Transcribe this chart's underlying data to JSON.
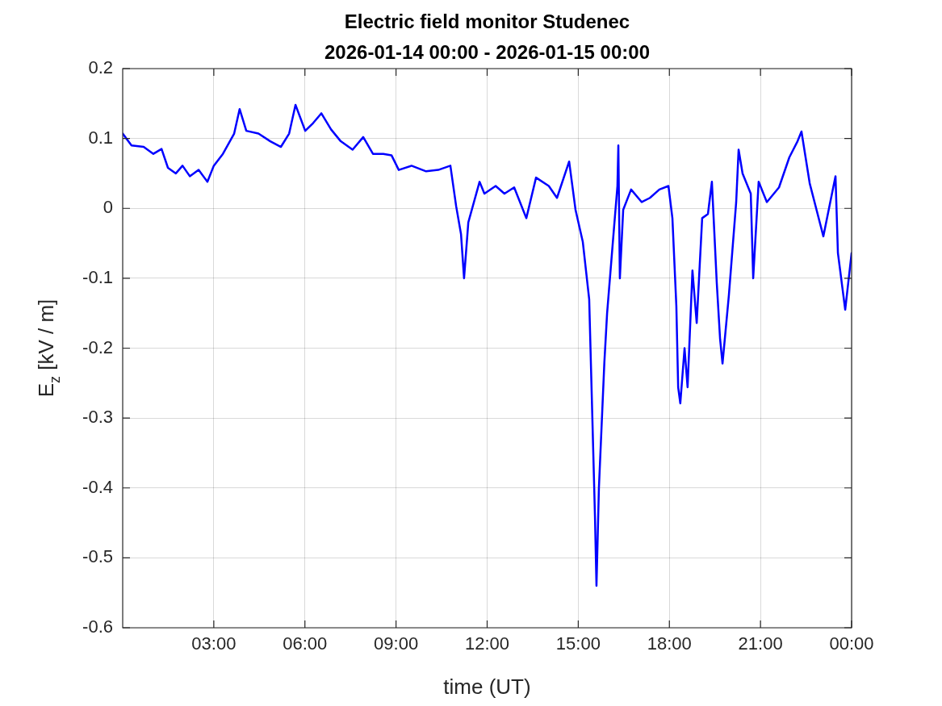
{
  "chart_data": {
    "type": "line",
    "title": "Electric field monitor Studenec",
    "subtitle": "2026-01-14 00:00 - 2026-01-15 00:00",
    "xlabel": "time (UT)",
    "ylabel": "E$_{z}$ [kV / m]",
    "x": [
      0,
      0.29,
      0.69,
      1.01,
      1.28,
      1.49,
      1.75,
      1.97,
      2.21,
      2.5,
      2.79,
      3,
      3.3,
      3.67,
      3.85,
      4.07,
      4.47,
      4.86,
      5.21,
      5.48,
      5.69,
      6.01,
      6.27,
      6.54,
      6.86,
      7.18,
      7.57,
      7.92,
      8.24,
      8.58,
      8.85,
      9.09,
      9.51,
      9.99,
      10.39,
      10.79,
      10.98,
      11.14,
      11.24,
      11.38,
      11.75,
      11.91,
      12.28,
      12.57,
      12.89,
      13.29,
      13.61,
      14.03,
      14.3,
      14.7,
      14.91,
      15.15,
      15.36,
      15.55,
      15.6,
      15.68,
      15.86,
      15.95,
      16.16,
      16.29,
      16.32,
      16.37,
      16.48,
      16.74,
      17.09,
      17.36,
      17.67,
      17.97,
      18.1,
      18.23,
      18.29,
      18.36,
      18.5,
      18.6,
      18.76,
      18.9,
      19.08,
      19.27,
      19.4,
      19.56,
      19.67,
      19.75,
      19.96,
      20.2,
      20.28,
      20.41,
      20.68,
      20.76,
      20.94,
      21.21,
      21.61,
      21.95,
      22.22,
      22.35,
      22.62,
      23.07,
      23.47,
      23.55,
      23.79,
      24
    ],
    "series": [
      {
        "color": "#0000ff",
        "values": [
          0.107,
          0.09,
          0.088,
          0.078,
          0.085,
          0.058,
          0.05,
          0.061,
          0.046,
          0.055,
          0.038,
          0.061,
          0.078,
          0.107,
          0.142,
          0.111,
          0.107,
          0.096,
          0.088,
          0.107,
          0.148,
          0.111,
          0.122,
          0.136,
          0.113,
          0.096,
          0.084,
          0.102,
          0.078,
          0.078,
          0.076,
          0.055,
          0.061,
          0.053,
          0.055,
          0.061,
          0.003,
          -0.037,
          -0.1,
          -0.02,
          0.038,
          0.021,
          0.032,
          0.021,
          0.03,
          -0.014,
          0.044,
          0.032,
          0.015,
          0.067,
          -0.002,
          -0.048,
          -0.13,
          -0.44,
          -0.54,
          -0.4,
          -0.22,
          -0.15,
          -0.037,
          0.032,
          0.09,
          -0.1,
          -0.002,
          0.027,
          0.009,
          0.015,
          0.027,
          0.032,
          -0.014,
          -0.14,
          -0.256,
          -0.279,
          -0.2,
          -0.256,
          -0.089,
          -0.164,
          -0.014,
          -0.008,
          0.038,
          -0.106,
          -0.187,
          -0.222,
          -0.124,
          0.009,
          0.084,
          0.05,
          0.021,
          -0.1,
          0.038,
          0.009,
          0.03,
          0.073,
          0.096,
          0.11,
          0.036,
          -0.04,
          0.046,
          -0.064,
          -0.145,
          -0.064
        ]
      }
    ],
    "xlim": [
      0,
      24
    ],
    "xticks": [
      {
        "value": 3,
        "label": "03:00"
      },
      {
        "value": 6,
        "label": "06:00"
      },
      {
        "value": 9,
        "label": "09:00"
      },
      {
        "value": 12,
        "label": "12:00"
      },
      {
        "value": 15,
        "label": "15:00"
      },
      {
        "value": 18,
        "label": "18:00"
      },
      {
        "value": 21,
        "label": "21:00"
      },
      {
        "value": 24,
        "label": "00:00"
      }
    ],
    "ylim": [
      -0.6,
      0.2
    ],
    "yticks": [
      -0.6,
      -0.5,
      -0.4,
      -0.3,
      -0.2,
      -0.1,
      0,
      0.1,
      0.2
    ],
    "grid": true,
    "marker": "none",
    "line_style": "solid",
    "legend": false
  }
}
